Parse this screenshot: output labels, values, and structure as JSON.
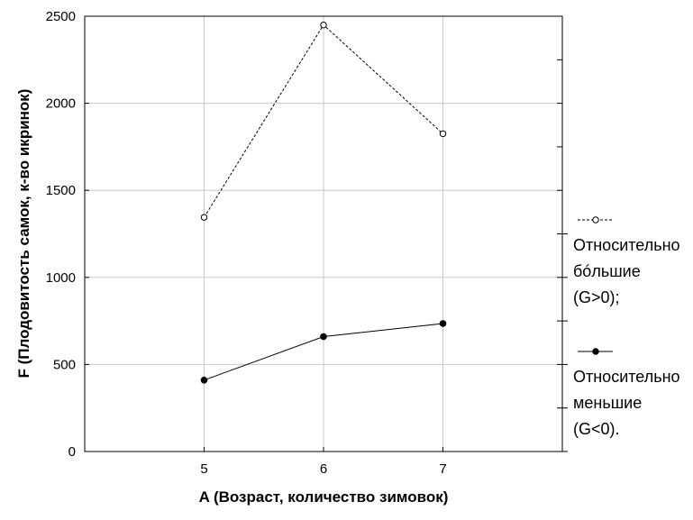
{
  "chart_data": {
    "type": "line",
    "categories": [
      "5",
      "6",
      "7"
    ],
    "x": [
      5,
      6,
      7
    ],
    "xlim": [
      4,
      8
    ],
    "ylim": [
      0,
      2500
    ],
    "yticks": [
      0,
      500,
      1000,
      1500,
      2000,
      2500
    ],
    "xlabel": "A (Возраст, количество зимовок)",
    "ylabel": "F (Плодовитость самок, к-во икринок)",
    "grid": true,
    "legend_position": "right",
    "series": [
      {
        "name": "Относительно бóльшие (G>0);",
        "name_lines": [
          "Относительно",
          "бóльшие",
          "(G>0);"
        ],
        "style": "dashed",
        "marker": "open-circle",
        "color": "#000000",
        "values": [
          1345,
          2450,
          1825
        ]
      },
      {
        "name": "Относительно меньшие (G<0).",
        "name_lines": [
          "Относительно",
          "меньшие",
          "(G<0)."
        ],
        "style": "solid",
        "marker": "filled-circle",
        "color": "#000000",
        "values": [
          410,
          660,
          735
        ]
      }
    ]
  }
}
